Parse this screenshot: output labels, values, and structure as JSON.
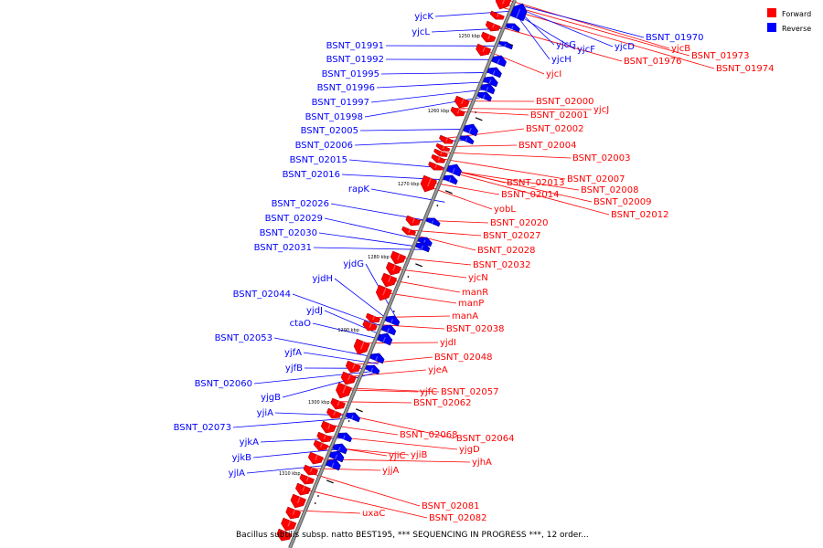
{
  "colors": {
    "forward": "#ff0000",
    "reverse": "#0000ff",
    "forward_dark": "#b00000",
    "reverse_dark": "#00009a",
    "backbone": "#9a9a9a",
    "tick": "#000000"
  },
  "legend": {
    "forward": "Forward",
    "reverse": "Reverse"
  },
  "caption": "Bacillus subtilis subsp. natto BEST195, *** SEQUENCING IN PROGRESS ***, 12 order...",
  "ticks": [
    {
      "label": "1250 kbp",
      "pos": 1250
    },
    {
      "label": "1260 kbp",
      "pos": 1260
    },
    {
      "label": "1270 kbp",
      "pos": 1270
    },
    {
      "label": "1280 kbp",
      "pos": 1280
    },
    {
      "label": "1290 kbp",
      "pos": 1290
    },
    {
      "label": "1300 kbp",
      "pos": 1300
    },
    {
      "label": "1310 kbp",
      "pos": 1310
    }
  ],
  "reverse_labels": [
    "yjcK",
    "yjcL",
    "BSNT_01991",
    "BSNT_01992",
    "BSNT_01995",
    "BSNT_01996",
    "BSNT_01997",
    "BSNT_01998",
    "BSNT_02005",
    "BSNT_02006",
    "BSNT_02015",
    "BSNT_02016",
    "rapK",
    "BSNT_02026",
    "BSNT_02029",
    "BSNT_02030",
    "BSNT_02031",
    "yjdG",
    "yjdH",
    "BSNT_02044",
    "yjdJ",
    "ctaO",
    "BSNT_02053",
    "yjfA",
    "yjfB",
    "BSNT_02060",
    "yjgB",
    "yjiA",
    "BSNT_02073",
    "yjkA",
    "yjkB",
    "yjlA"
  ],
  "reverse_right_labels": [
    "BSNT_01970",
    "yjcD",
    "yjcG",
    "yjcF",
    "yjcH"
  ],
  "forward_labels": [
    "yjcB",
    "BSNT_01973",
    "BSNT_01976",
    "BSNT_01974",
    "yjcI",
    "BSNT_02000",
    "yjcJ",
    "BSNT_02001",
    "BSNT_02002",
    "BSNT_02004",
    "BSNT_02003",
    "BSNT_02007",
    "BSNT_02013",
    "BSNT_02008",
    "BSNT_02014",
    "BSNT_02009",
    "BSNT_02012",
    "yobL",
    "BSNT_02020",
    "BSNT_02027",
    "BSNT_02028",
    "BSNT_02032",
    "yjcN",
    "manR",
    "manP",
    "manA",
    "BSNT_02038",
    "yjdI",
    "BSNT_02048",
    "yjeA",
    "yjfC",
    "BSNT_02057",
    "BSNT_02062",
    "BSNT_02068",
    "BSNT_02064",
    "yjgD",
    "yjiC",
    "yjiB",
    "yjhA",
    "yjjA",
    "BSNT_02081",
    "uxaC",
    "BSNT_02082"
  ]
}
